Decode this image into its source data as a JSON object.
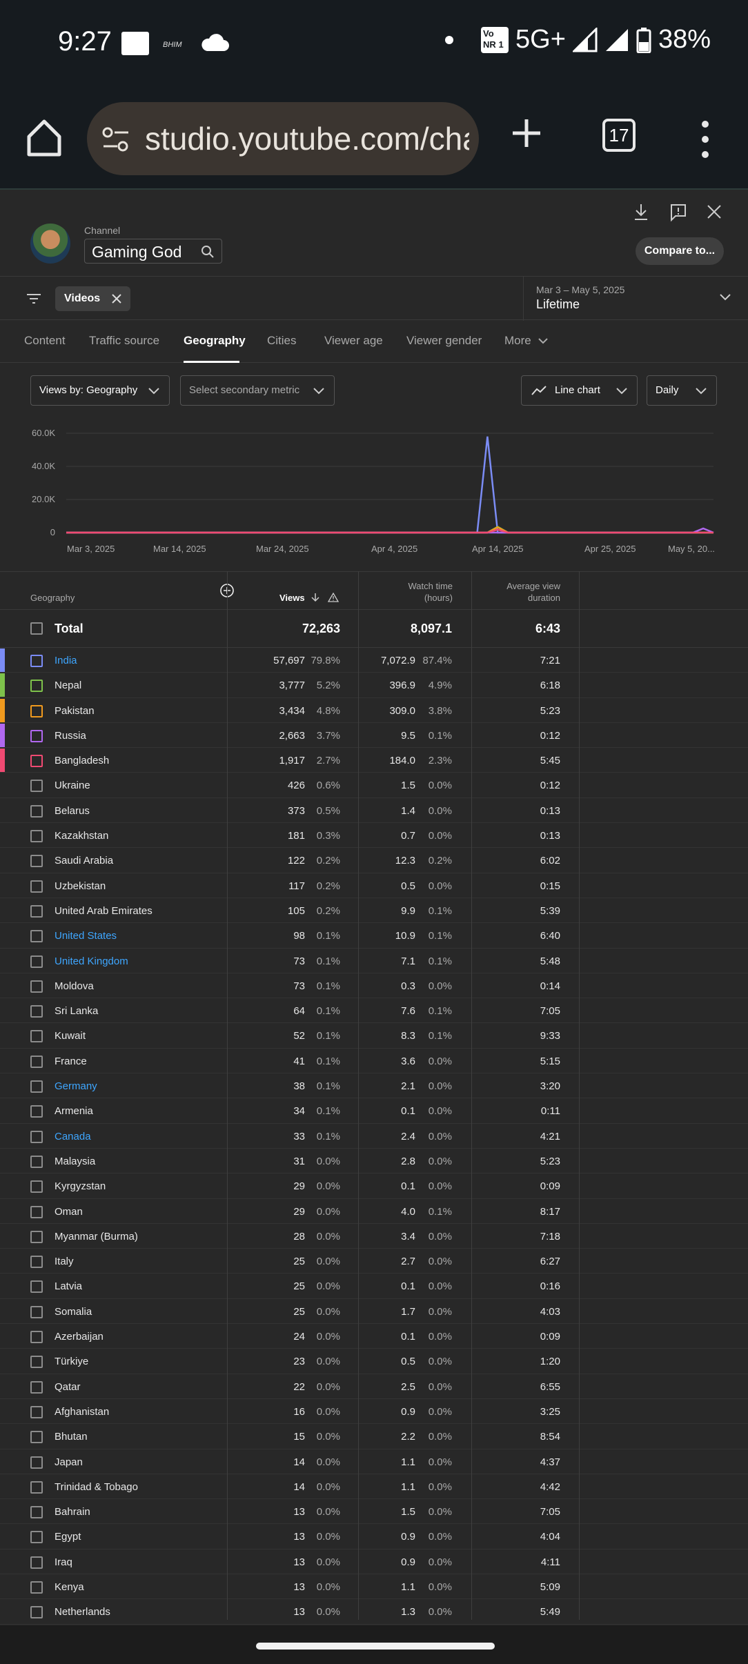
{
  "status_bar": {
    "time": "9:27",
    "network": "5G+",
    "battery": "38%",
    "volte": "Vo NR",
    "sim_slot": "1"
  },
  "browser": {
    "url": "studio.youtube.com/channel",
    "tab_count": "17"
  },
  "channel": {
    "label": "Channel",
    "name": "Gaming God",
    "compare_label": "Compare to..."
  },
  "filters": {
    "chip_label": "Videos",
    "date_range": "Mar 3 – May 5, 2025",
    "period": "Lifetime"
  },
  "tabs": [
    "Content",
    "Traffic source",
    "Geography",
    "Cities",
    "Viewer age",
    "Viewer gender",
    "More"
  ],
  "controls": {
    "views_by": "Views by: Geography",
    "secondary": "Select secondary metric",
    "chart_type": "Line chart",
    "granularity": "Daily"
  },
  "chart_data": {
    "type": "line",
    "y_ticks": [
      "60.0K",
      "40.0K",
      "20.0K",
      "0"
    ],
    "x_ticks": [
      "Mar 3, 2025",
      "Mar 14, 2025",
      "Mar 24, 2025",
      "Apr 4, 2025",
      "Apr 14, 2025",
      "Apr 25, 2025",
      "May 5, 20..."
    ],
    "ylim": [
      0,
      60000
    ],
    "days": 64,
    "series": [
      {
        "name": "India",
        "color": "#7b8cf5",
        "spikes": [
          [
            40,
            0
          ],
          [
            41,
            58000
          ],
          [
            42,
            0
          ]
        ]
      },
      {
        "name": "Nepal",
        "color": "#7ec24b",
        "spikes": [
          [
            41,
            0
          ],
          [
            42,
            3500
          ],
          [
            43,
            0
          ]
        ]
      },
      {
        "name": "Pakistan",
        "color": "#f09a1e",
        "spikes": [
          [
            41,
            0
          ],
          [
            42,
            3200
          ],
          [
            43,
            0
          ]
        ]
      },
      {
        "name": "Russia",
        "color": "#b168f0",
        "spikes": [
          [
            61,
            0
          ],
          [
            62,
            2500
          ],
          [
            63,
            0
          ]
        ]
      },
      {
        "name": "Bangladesh",
        "color": "#f04a72",
        "spikes": [
          [
            41,
            0
          ],
          [
            42,
            1800
          ],
          [
            43,
            0
          ]
        ]
      }
    ]
  },
  "table": {
    "headers": {
      "geography": "Geography",
      "views": "Views",
      "watch_time": [
        "Watch time",
        "(hours)"
      ],
      "avg_duration": [
        "Average view",
        "duration"
      ]
    },
    "total": {
      "label": "Total",
      "views": "72,263",
      "watch": "8,097.1",
      "avg": "6:43"
    },
    "rows": [
      {
        "country": "India",
        "views": "57,697",
        "vp": "79.8%",
        "watch": "7,072.9",
        "wp": "87.4%",
        "avg": "7:21",
        "color": "#7b8cf5",
        "link": true
      },
      {
        "country": "Nepal",
        "views": "3,777",
        "vp": "5.2%",
        "watch": "396.9",
        "wp": "4.9%",
        "avg": "6:18",
        "color": "#7ec24b",
        "link": false
      },
      {
        "country": "Pakistan",
        "views": "3,434",
        "vp": "4.8%",
        "watch": "309.0",
        "wp": "3.8%",
        "avg": "5:23",
        "color": "#f09a1e",
        "link": false
      },
      {
        "country": "Russia",
        "views": "2,663",
        "vp": "3.7%",
        "watch": "9.5",
        "wp": "0.1%",
        "avg": "0:12",
        "color": "#b168f0",
        "link": false
      },
      {
        "country": "Bangladesh",
        "views": "1,917",
        "vp": "2.7%",
        "watch": "184.0",
        "wp": "2.3%",
        "avg": "5:45",
        "color": "#f04a72",
        "link": false
      },
      {
        "country": "Ukraine",
        "views": "426",
        "vp": "0.6%",
        "watch": "1.5",
        "wp": "0.0%",
        "avg": "0:12",
        "color": "",
        "link": false
      },
      {
        "country": "Belarus",
        "views": "373",
        "vp": "0.5%",
        "watch": "1.4",
        "wp": "0.0%",
        "avg": "0:13",
        "color": "",
        "link": false
      },
      {
        "country": "Kazakhstan",
        "views": "181",
        "vp": "0.3%",
        "watch": "0.7",
        "wp": "0.0%",
        "avg": "0:13",
        "color": "",
        "link": false
      },
      {
        "country": "Saudi Arabia",
        "views": "122",
        "vp": "0.2%",
        "watch": "12.3",
        "wp": "0.2%",
        "avg": "6:02",
        "color": "",
        "link": false
      },
      {
        "country": "Uzbekistan",
        "views": "117",
        "vp": "0.2%",
        "watch": "0.5",
        "wp": "0.0%",
        "avg": "0:15",
        "color": "",
        "link": false
      },
      {
        "country": "United Arab Emirates",
        "views": "105",
        "vp": "0.2%",
        "watch": "9.9",
        "wp": "0.1%",
        "avg": "5:39",
        "color": "",
        "link": false
      },
      {
        "country": "United States",
        "views": "98",
        "vp": "0.1%",
        "watch": "10.9",
        "wp": "0.1%",
        "avg": "6:40",
        "color": "",
        "link": true
      },
      {
        "country": "United Kingdom",
        "views": "73",
        "vp": "0.1%",
        "watch": "7.1",
        "wp": "0.1%",
        "avg": "5:48",
        "color": "",
        "link": true
      },
      {
        "country": "Moldova",
        "views": "73",
        "vp": "0.1%",
        "watch": "0.3",
        "wp": "0.0%",
        "avg": "0:14",
        "color": "",
        "link": false
      },
      {
        "country": "Sri Lanka",
        "views": "64",
        "vp": "0.1%",
        "watch": "7.6",
        "wp": "0.1%",
        "avg": "7:05",
        "color": "",
        "link": false
      },
      {
        "country": "Kuwait",
        "views": "52",
        "vp": "0.1%",
        "watch": "8.3",
        "wp": "0.1%",
        "avg": "9:33",
        "color": "",
        "link": false
      },
      {
        "country": "France",
        "views": "41",
        "vp": "0.1%",
        "watch": "3.6",
        "wp": "0.0%",
        "avg": "5:15",
        "color": "",
        "link": false
      },
      {
        "country": "Germany",
        "views": "38",
        "vp": "0.1%",
        "watch": "2.1",
        "wp": "0.0%",
        "avg": "3:20",
        "color": "",
        "link": true
      },
      {
        "country": "Armenia",
        "views": "34",
        "vp": "0.1%",
        "watch": "0.1",
        "wp": "0.0%",
        "avg": "0:11",
        "color": "",
        "link": false
      },
      {
        "country": "Canada",
        "views": "33",
        "vp": "0.1%",
        "watch": "2.4",
        "wp": "0.0%",
        "avg": "4:21",
        "color": "",
        "link": true
      },
      {
        "country": "Malaysia",
        "views": "31",
        "vp": "0.0%",
        "watch": "2.8",
        "wp": "0.0%",
        "avg": "5:23",
        "color": "",
        "link": false
      },
      {
        "country": "Kyrgyzstan",
        "views": "29",
        "vp": "0.0%",
        "watch": "0.1",
        "wp": "0.0%",
        "avg": "0:09",
        "color": "",
        "link": false
      },
      {
        "country": "Oman",
        "views": "29",
        "vp": "0.0%",
        "watch": "4.0",
        "wp": "0.1%",
        "avg": "8:17",
        "color": "",
        "link": false
      },
      {
        "country": "Myanmar (Burma)",
        "views": "28",
        "vp": "0.0%",
        "watch": "3.4",
        "wp": "0.0%",
        "avg": "7:18",
        "color": "",
        "link": false
      },
      {
        "country": "Italy",
        "views": "25",
        "vp": "0.0%",
        "watch": "2.7",
        "wp": "0.0%",
        "avg": "6:27",
        "color": "",
        "link": false
      },
      {
        "country": "Latvia",
        "views": "25",
        "vp": "0.0%",
        "watch": "0.1",
        "wp": "0.0%",
        "avg": "0:16",
        "color": "",
        "link": false
      },
      {
        "country": "Somalia",
        "views": "25",
        "vp": "0.0%",
        "watch": "1.7",
        "wp": "0.0%",
        "avg": "4:03",
        "color": "",
        "link": false
      },
      {
        "country": "Azerbaijan",
        "views": "24",
        "vp": "0.0%",
        "watch": "0.1",
        "wp": "0.0%",
        "avg": "0:09",
        "color": "",
        "link": false
      },
      {
        "country": "Türkiye",
        "views": "23",
        "vp": "0.0%",
        "watch": "0.5",
        "wp": "0.0%",
        "avg": "1:20",
        "color": "",
        "link": false
      },
      {
        "country": "Qatar",
        "views": "22",
        "vp": "0.0%",
        "watch": "2.5",
        "wp": "0.0%",
        "avg": "6:55",
        "color": "",
        "link": false
      },
      {
        "country": "Afghanistan",
        "views": "16",
        "vp": "0.0%",
        "watch": "0.9",
        "wp": "0.0%",
        "avg": "3:25",
        "color": "",
        "link": false
      },
      {
        "country": "Bhutan",
        "views": "15",
        "vp": "0.0%",
        "watch": "2.2",
        "wp": "0.0%",
        "avg": "8:54",
        "color": "",
        "link": false
      },
      {
        "country": "Japan",
        "views": "14",
        "vp": "0.0%",
        "watch": "1.1",
        "wp": "0.0%",
        "avg": "4:37",
        "color": "",
        "link": false
      },
      {
        "country": "Trinidad & Tobago",
        "views": "14",
        "vp": "0.0%",
        "watch": "1.1",
        "wp": "0.0%",
        "avg": "4:42",
        "color": "",
        "link": false
      },
      {
        "country": "Bahrain",
        "views": "13",
        "vp": "0.0%",
        "watch": "1.5",
        "wp": "0.0%",
        "avg": "7:05",
        "color": "",
        "link": false
      },
      {
        "country": "Egypt",
        "views": "13",
        "vp": "0.0%",
        "watch": "0.9",
        "wp": "0.0%",
        "avg": "4:04",
        "color": "",
        "link": false
      },
      {
        "country": "Iraq",
        "views": "13",
        "vp": "0.0%",
        "watch": "0.9",
        "wp": "0.0%",
        "avg": "4:11",
        "color": "",
        "link": false
      },
      {
        "country": "Kenya",
        "views": "13",
        "vp": "0.0%",
        "watch": "1.1",
        "wp": "0.0%",
        "avg": "5:09",
        "color": "",
        "link": false
      },
      {
        "country": "Netherlands",
        "views": "13",
        "vp": "0.0%",
        "watch": "1.3",
        "wp": "0.0%",
        "avg": "5:49",
        "color": "",
        "link": false
      }
    ]
  }
}
